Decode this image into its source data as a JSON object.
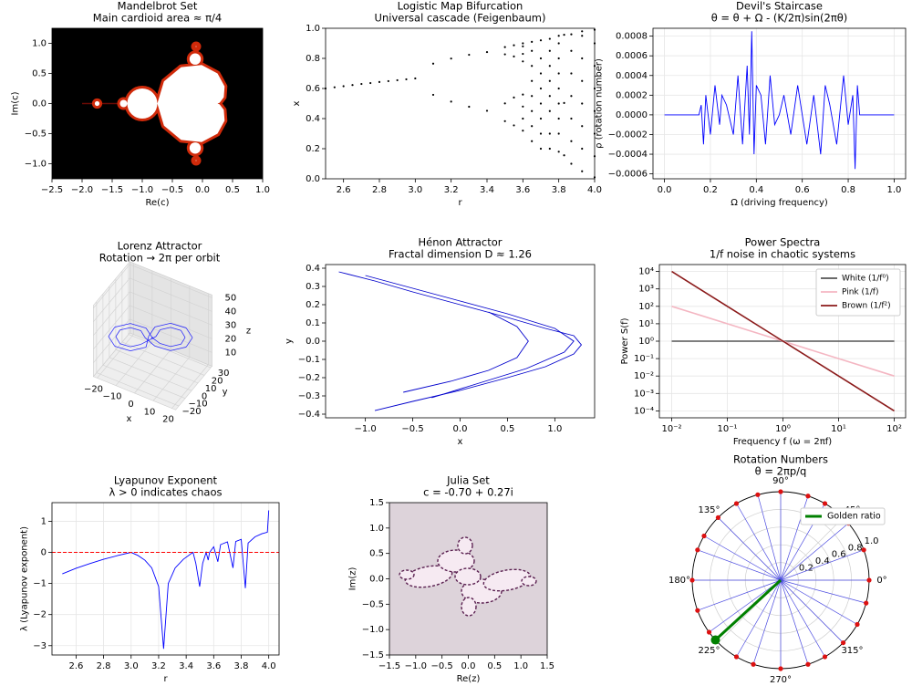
{
  "chart_data": [
    {
      "type": "image",
      "title": "Mandelbrot Set",
      "subtitle": "Main cardioid area ≈ π/4",
      "xlabel": "Re(c)",
      "ylabel": "Im(c)",
      "xlim": [
        -2.5,
        1
      ],
      "ylim": [
        -1.25,
        1.25
      ],
      "xticks": [
        {
          "value": -2.5,
          "label": "−2.5"
        },
        {
          "value": -2,
          "label": "−2.0"
        },
        {
          "value": -1.5,
          "label": "−1.5"
        },
        {
          "value": -1,
          "label": "−1.0"
        },
        {
          "value": -0.5,
          "label": "−0.5"
        },
        {
          "value": 0,
          "label": "0.0"
        },
        {
          "value": 0.5,
          "label": "0.5"
        },
        {
          "value": 1,
          "label": "1.0"
        }
      ],
      "yticks": [
        {
          "value": -1,
          "label": "−1.0"
        },
        {
          "value": -0.5,
          "label": "−0.5"
        },
        {
          "value": 0,
          "label": "0.0"
        },
        {
          "value": 0.5,
          "label": "0.5"
        },
        {
          "value": 1,
          "label": "1.0"
        }
      ]
    },
    {
      "type": "scatter",
      "title": "Logistic Map Bifurcation",
      "subtitle": "Universal cascade (Feigenbaum)",
      "xlabel": "r",
      "ylabel": "x",
      "color": "#000000",
      "xlim": [
        2.5,
        4
      ],
      "ylim": [
        0,
        1
      ],
      "xticks": [
        2.6,
        2.8,
        {
          "value": 3,
          "label": "3.0"
        },
        3.2,
        3.4,
        3.6,
        3.8,
        {
          "value": 4,
          "label": "4.0"
        }
      ],
      "yticks": [
        {
          "value": 0,
          "label": "0.0"
        },
        0.2,
        0.4,
        0.6,
        0.8,
        {
          "value": 1,
          "label": "1.0"
        }
      ],
      "x": [
        2.5,
        2.55,
        2.6,
        2.65,
        2.7,
        2.75,
        2.8,
        2.85,
        2.9,
        2.95,
        3.0,
        3.1,
        3.1,
        3.2,
        3.2,
        3.3,
        3.3,
        3.4,
        3.4,
        3.5,
        3.5,
        3.5,
        3.5,
        3.55,
        3.55,
        3.55,
        3.55,
        3.6,
        3.6,
        3.6,
        3.6,
        3.6,
        3.6,
        3.6,
        3.6,
        3.65,
        3.65,
        3.65,
        3.65,
        3.65,
        3.65,
        3.65,
        3.65,
        3.7,
        3.7,
        3.7,
        3.7,
        3.7,
        3.7,
        3.7,
        3.7,
        3.75,
        3.75,
        3.75,
        3.75,
        3.75,
        3.75,
        3.75,
        3.75,
        3.8,
        3.8,
        3.8,
        3.8,
        3.8,
        3.8,
        3.8,
        3.8,
        3.8,
        3.83,
        3.83,
        3.83,
        3.87,
        3.87,
        3.87,
        3.87,
        3.87,
        3.87,
        3.87,
        3.93,
        3.93,
        3.93,
        3.93,
        3.93,
        3.93,
        3.93,
        3.93,
        4.0,
        4.0,
        4.0,
        4.0,
        4.0,
        4.0,
        4.0,
        4.0
      ],
      "y": [
        0.6,
        0.608,
        0.615,
        0.623,
        0.63,
        0.636,
        0.643,
        0.649,
        0.655,
        0.661,
        0.667,
        0.558,
        0.765,
        0.513,
        0.799,
        0.479,
        0.824,
        0.452,
        0.842,
        0.383,
        0.827,
        0.501,
        0.875,
        0.355,
        0.813,
        0.54,
        0.887,
        0.32,
        0.4,
        0.48,
        0.56,
        0.78,
        0.83,
        0.88,
        0.9,
        0.25,
        0.35,
        0.45,
        0.55,
        0.65,
        0.75,
        0.85,
        0.91,
        0.2,
        0.3,
        0.4,
        0.5,
        0.6,
        0.7,
        0.8,
        0.92,
        0.2,
        0.3,
        0.45,
        0.55,
        0.65,
        0.75,
        0.85,
        0.93,
        0.18,
        0.3,
        0.4,
        0.5,
        0.6,
        0.7,
        0.8,
        0.9,
        0.95,
        0.156,
        0.504,
        0.957,
        0.1,
        0.25,
        0.4,
        0.55,
        0.7,
        0.85,
        0.96,
        0.05,
        0.2,
        0.35,
        0.5,
        0.65,
        0.8,
        0.95,
        0.98,
        0.01,
        0.15,
        0.3,
        0.45,
        0.6,
        0.75,
        0.9,
        0.99
      ]
    },
    {
      "type": "line",
      "title": "Devil's Staircase",
      "subtitle": "θ = θ + Ω - (K/2π)sin(2πθ)",
      "xlabel": "Ω (driving frequency)",
      "ylabel": "ρ (rotation number)",
      "color": "#0000ff",
      "grid": true,
      "xlim": [
        -0.05,
        1.05
      ],
      "ylim": [
        -0.00065,
        0.00088
      ],
      "xticks": [
        {
          "value": 0,
          "label": "0.0"
        },
        0.2,
        0.4,
        0.6,
        0.8,
        {
          "value": 1,
          "label": "1.0"
        }
      ],
      "yticks": [
        {
          "value": -0.0006,
          "label": "−0.0006"
        },
        {
          "value": -0.0004,
          "label": "−0.0004"
        },
        {
          "value": -0.0002,
          "label": "−0.0002"
        },
        {
          "value": 0,
          "label": "0.0000"
        },
        {
          "value": 0.0002,
          "label": "0.0002"
        },
        {
          "value": 0.0004,
          "label": "0.0004"
        },
        {
          "value": 0.0006,
          "label": "0.0006"
        },
        {
          "value": 0.0008,
          "label": "0.0008"
        }
      ],
      "x": [
        0,
        0.1,
        0.15,
        0.16,
        0.17,
        0.18,
        0.2,
        0.22,
        0.24,
        0.25,
        0.27,
        0.3,
        0.32,
        0.34,
        0.36,
        0.37,
        0.38,
        0.39,
        0.4,
        0.42,
        0.44,
        0.46,
        0.48,
        0.5,
        0.52,
        0.55,
        0.58,
        0.6,
        0.62,
        0.65,
        0.68,
        0.7,
        0.72,
        0.75,
        0.78,
        0.8,
        0.82,
        0.83,
        0.84,
        0.85,
        0.9,
        1.0
      ],
      "values": [
        0,
        0,
        0,
        0.0001,
        -0.0003,
        0.0002,
        -0.0002,
        0.0003,
        -0.0001,
        0.0002,
        0.0001,
        -0.0002,
        0.0004,
        -0.0003,
        0.0005,
        -0.0002,
        0.00085,
        -0.0004,
        0.0003,
        0.0002,
        -0.0003,
        0.0004,
        -0.0001,
        0,
        0.0002,
        -0.0002,
        0.0003,
        0,
        -0.0003,
        0.0002,
        -0.0004,
        0.0003,
        0.0001,
        -0.0003,
        0.0004,
        -0.0001,
        0.0002,
        -0.00055,
        0.0003,
        0,
        0,
        0
      ]
    },
    {
      "type": "line3d",
      "title": "Lorenz Attractor",
      "subtitle": "Rotation → 2π per orbit",
      "xlabel": "x",
      "ylabel": "y",
      "zlabel": "z",
      "color": "#0000ff",
      "xlim": [
        -22,
        22
      ],
      "ylim": [
        -25,
        32
      ],
      "zlim": [
        0,
        52
      ],
      "xticks": [
        {
          "value": -20,
          "label": "−20"
        },
        {
          "value": -10,
          "label": "−10"
        },
        0,
        10,
        20
      ],
      "yticks": [
        {
          "value": -20,
          "label": "−20"
        },
        {
          "value": -10,
          "label": "−10"
        },
        0,
        10,
        20,
        30
      ],
      "zticks": [
        10,
        20,
        30,
        40,
        50
      ],
      "x": [
        1,
        -1.6,
        -8,
        -14.4,
        -17,
        -14.4,
        -8,
        -1.6,
        -1,
        1.6,
        8,
        14.4,
        17,
        14.4,
        8,
        1.6,
        -2,
        -3.7,
        -8,
        -12.3,
        -14,
        -12.3,
        -8,
        -3.7,
        2,
        3.7,
        8,
        12.3,
        14,
        12.3,
        8,
        3.7,
        1
      ],
      "y": [
        0,
        -2.3,
        -8,
        -13.7,
        -16,
        -13.7,
        -8,
        -2.3,
        0,
        2.3,
        8,
        13.7,
        16,
        13.7,
        8,
        2.3,
        -2.7,
        -4.2,
        -8,
        -11.8,
        -13.3,
        -11.8,
        -8,
        -4.2,
        2.7,
        4.2,
        8,
        11.8,
        13.3,
        11.8,
        8,
        4.2,
        0
      ],
      "z": [
        27,
        34,
        37,
        34,
        27,
        20,
        17,
        20,
        27,
        34,
        37,
        34,
        27,
        20,
        17,
        20,
        27,
        32,
        34,
        32,
        27,
        22,
        20,
        22,
        27,
        32,
        34,
        32,
        27,
        22,
        20,
        22,
        27
      ]
    },
    {
      "type": "line",
      "title": "Hénon Attractor",
      "subtitle": "Fractal dimension D ≈ 1.26",
      "xlabel": "x",
      "ylabel": "y",
      "xlim": [
        -1.42,
        1.42
      ],
      "ylim": [
        -0.42,
        0.42
      ],
      "xticks": [
        {
          "value": -1,
          "label": "−1.0"
        },
        {
          "value": -0.5,
          "label": "−0.5"
        },
        {
          "value": 0,
          "label": "0.0"
        },
        0.5,
        {
          "value": 1,
          "label": "1.0"
        }
      ],
      "yticks": [
        {
          "value": -0.4,
          "label": "−0.4"
        },
        {
          "value": -0.3,
          "label": "−0.3"
        },
        {
          "value": -0.2,
          "label": "−0.2"
        },
        {
          "value": -0.1,
          "label": "−0.1"
        },
        {
          "value": 0,
          "label": "0.0"
        },
        0.1,
        0.2,
        0.3,
        0.4
      ],
      "series": [
        {
          "color": "#0000cc",
          "x": [
            -1.28,
            -0.9,
            -0.5,
            0,
            0.5,
            0.9,
            1.2,
            1.28,
            1.2,
            0.9,
            0.5,
            0,
            -0.5,
            -0.9
          ],
          "y": [
            0.38,
            0.33,
            0.27,
            0.2,
            0.13,
            0.07,
            0.03,
            -0.02,
            -0.07,
            -0.14,
            -0.2,
            -0.27,
            -0.33,
            -0.38
          ]
        },
        {
          "color": "#0000cc",
          "x": [
            -1.0,
            -0.5,
            0,
            0.5,
            1.0,
            1.2,
            1.1,
            0.7,
            0.2,
            -0.3
          ],
          "y": [
            0.36,
            0.29,
            0.22,
            0.15,
            0.07,
            0,
            -0.06,
            -0.15,
            -0.23,
            -0.31
          ]
        },
        {
          "color": "#0000cc",
          "x": [
            0.3,
            0.6,
            0.72,
            0.6,
            0.3,
            -0.1,
            -0.6
          ],
          "y": [
            0.16,
            0.08,
            0,
            -0.09,
            -0.16,
            -0.22,
            -0.28
          ]
        }
      ]
    },
    {
      "type": "line",
      "title": "Power Spectra",
      "subtitle": "1/f noise in chaotic systems",
      "xlabel": "Frequency f (ω = 2πf)",
      "ylabel": "Power S(f)",
      "xlog": true,
      "ylog": true,
      "grid": true,
      "legend": "upper right",
      "xlim": [
        0.006,
        160
      ],
      "ylim": [
        4e-05,
        25000
      ],
      "xticks": [
        {
          "value": 0.01,
          "label": "10⁻²"
        },
        {
          "value": 0.1,
          "label": "10⁻¹"
        },
        {
          "value": 1,
          "label": "10⁰"
        },
        {
          "value": 10,
          "label": "10¹"
        },
        {
          "value": 100,
          "label": "10²"
        }
      ],
      "yticks": [
        {
          "value": 0.0001,
          "label": "10⁻⁴"
        },
        {
          "value": 0.001,
          "label": "10⁻³"
        },
        {
          "value": 0.01,
          "label": "10⁻²"
        },
        {
          "value": 0.1,
          "label": "10⁻¹"
        },
        {
          "value": 1,
          "label": "10⁰"
        },
        {
          "value": 10,
          "label": "10¹"
        },
        {
          "value": 100,
          "label": "10²"
        },
        {
          "value": 1000,
          "label": "10³"
        },
        {
          "value": 10000,
          "label": "10⁴"
        }
      ],
      "x": [
        0.01,
        0.1,
        1,
        10,
        100
      ],
      "series": [
        {
          "name": "White (1/f⁰)",
          "color": "#555555",
          "values": [
            1,
            1,
            1,
            1,
            1
          ]
        },
        {
          "name": "Pink (1/f)",
          "color": "#f4b6c2",
          "values": [
            100,
            10,
            1,
            0.1,
            0.01
          ]
        },
        {
          "name": "Brown (1/f²)",
          "color": "#8b1a1a",
          "values": [
            10000,
            100,
            1,
            0.01,
            0.0001
          ]
        }
      ]
    },
    {
      "type": "line",
      "title": "Lyapunov Exponent",
      "subtitle": "λ > 0 indicates chaos",
      "xlabel": "r",
      "ylabel": "λ (Lyapunov exponent)",
      "color": "#0000ff",
      "grid": true,
      "hline": 0,
      "hline_color": "#ff0000",
      "xlim": [
        2.425,
        4.075
      ],
      "ylim": [
        -3.3,
        1.6
      ],
      "xticks": [
        2.6,
        2.8,
        {
          "value": 3,
          "label": "3.0"
        },
        3.2,
        3.4,
        3.6,
        3.8,
        {
          "value": 4,
          "label": "4.0"
        }
      ],
      "yticks": [
        {
          "value": -3,
          "label": "−3"
        },
        {
          "value": -2,
          "label": "−2"
        },
        {
          "value": -1,
          "label": "−1"
        },
        0,
        1
      ],
      "x": [
        2.5,
        2.6,
        2.7,
        2.8,
        2.9,
        3.0,
        3.05,
        3.1,
        3.15,
        3.2,
        3.236,
        3.27,
        3.32,
        3.38,
        3.44,
        3.45,
        3.47,
        3.498,
        3.52,
        3.545,
        3.56,
        3.57,
        3.6,
        3.63,
        3.65,
        3.7,
        3.74,
        3.76,
        3.8,
        3.83,
        3.85,
        3.9,
        3.95,
        3.99,
        4.0
      ],
      "values": [
        -0.69,
        -0.51,
        -0.36,
        -0.22,
        -0.105,
        0,
        -0.1,
        -0.25,
        -0.5,
        -1.1,
        -3.1,
        -1.0,
        -0.5,
        -0.22,
        -0.03,
        0,
        -0.35,
        -1.1,
        -0.35,
        0,
        -0.25,
        0,
        0.18,
        -0.3,
        0.25,
        0.34,
        -0.5,
        0.35,
        0.42,
        -1.15,
        0.3,
        0.5,
        0.6,
        0.65,
        1.35
      ]
    },
    {
      "type": "image",
      "title": "Julia Set",
      "subtitle": "c = -0.70 + 0.27i",
      "xlabel": "Re(z)",
      "ylabel": "Im(z)",
      "xlim": [
        -1.5,
        1.5
      ],
      "ylim": [
        -1.5,
        1.5
      ],
      "xticks": [
        {
          "value": -1.5,
          "label": "−1.5"
        },
        {
          "value": -1,
          "label": "−1.0"
        },
        {
          "value": -0.5,
          "label": "−0.5"
        },
        {
          "value": 0,
          "label": "0.0"
        },
        0.5,
        {
          "value": 1,
          "label": "1.0"
        },
        1.5
      ],
      "yticks": [
        {
          "value": -1.5,
          "label": "−1.5"
        },
        {
          "value": -1,
          "label": "−1.0"
        },
        {
          "value": -0.5,
          "label": "−0.5"
        },
        {
          "value": 0,
          "label": "0.0"
        },
        0.5,
        {
          "value": 1,
          "label": "1.0"
        },
        1.5
      ]
    },
    {
      "type": "polar",
      "title": "Rotation Numbers",
      "subtitle": "θ = 2πp/q",
      "legend": "upper right",
      "rlim": [
        0,
        1
      ],
      "rticks": [
        0.2,
        0.4,
        0.6,
        0.8,
        {
          "value": 1,
          "label": "1.0"
        }
      ],
      "thetaticks": [
        {
          "value": 0,
          "label": "0°"
        },
        {
          "value": 45,
          "label": "45°"
        },
        {
          "value": 90,
          "label": "90°"
        },
        {
          "value": 135,
          "label": "135°"
        },
        {
          "value": 180,
          "label": "180°"
        },
        {
          "value": 225,
          "label": "225°"
        },
        {
          "value": 270,
          "label": "270°"
        },
        {
          "value": 315,
          "label": "315°"
        }
      ],
      "series": [
        {
          "color": "#dd1111",
          "stem_color": "#4a4ae0",
          "theta": [
            0,
            20,
            40,
            60,
            72,
            90,
            105,
            120,
            135,
            150,
            160,
            180,
            200,
            216,
            240,
            252,
            270,
            288,
            300,
            315,
            330,
            345
          ],
          "r": [
            1,
            1,
            1,
            1,
            1,
            1,
            1,
            1,
            1,
            1,
            1,
            1,
            1,
            1,
            1,
            1,
            1,
            1,
            1,
            1,
            1,
            1
          ]
        },
        {
          "name": "Golden ratio",
          "color": "#008000",
          "theta": [
            222.5
          ],
          "r": [
            1
          ]
        }
      ]
    }
  ]
}
